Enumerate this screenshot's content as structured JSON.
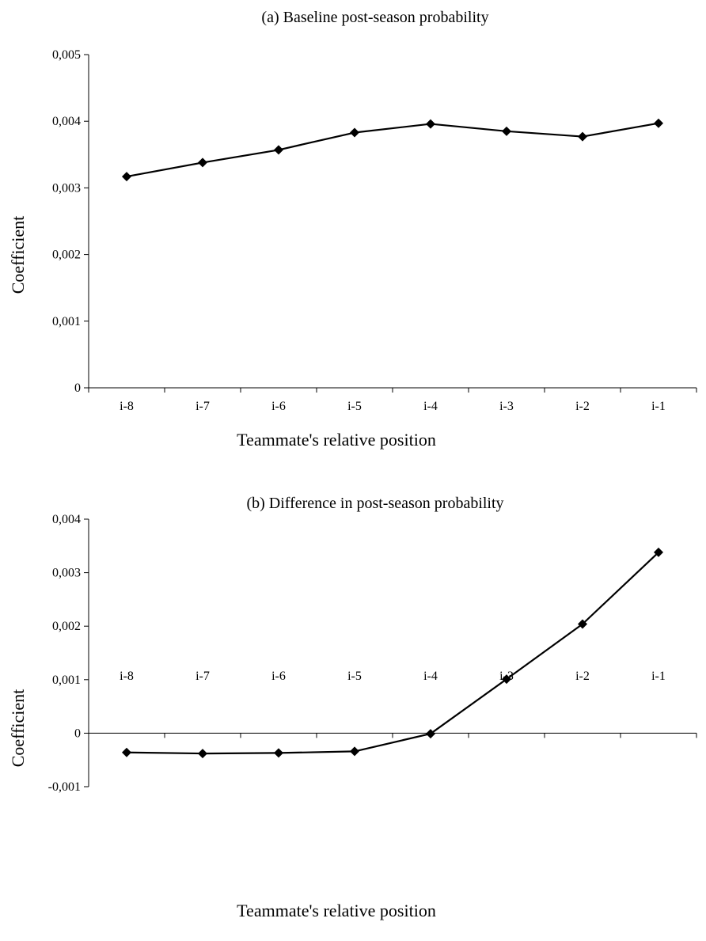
{
  "chart_data": [
    {
      "type": "line",
      "title": "(a) Baseline post-season probability",
      "xlabel": "Teammate's relative position",
      "ylabel": "Coefficient",
      "categories": [
        "i-8",
        "i-7",
        "i-6",
        "i-5",
        "i-4",
        "i-3",
        "i-2",
        "i-1"
      ],
      "values": [
        0.00317,
        0.00338,
        0.00357,
        0.00383,
        0.00396,
        0.00385,
        0.00377,
        0.00397
      ],
      "ylim": [
        0,
        0.005
      ],
      "yticks": [
        0,
        0.001,
        0.002,
        0.003,
        0.004,
        0.005
      ],
      "ytick_labels": [
        "0",
        "0,001",
        "0,002",
        "0,003",
        "0,004",
        "0,005"
      ],
      "grid": false,
      "marker": "diamond",
      "line_color": "#000000"
    },
    {
      "type": "line",
      "title": "(b) Difference in post-season probability",
      "xlabel": "Teammate's relative position",
      "ylabel": "Coefficient",
      "categories": [
        "i-8",
        "i-7",
        "i-6",
        "i-5",
        "i-4",
        "i-3",
        "i-2",
        "i-1"
      ],
      "values": [
        -0.00036,
        -0.00038,
        -0.00037,
        -0.00034,
        -1e-05,
        0.00101,
        0.00204,
        0.00338
      ],
      "ylim": [
        -0.001,
        0.004
      ],
      "yticks": [
        -0.001,
        0,
        0.001,
        0.002,
        0.003,
        0.004
      ],
      "ytick_labels": [
        "-0,001",
        "0",
        "0,001",
        "0,002",
        "0,003",
        "0,004"
      ],
      "grid": false,
      "marker": "diamond",
      "line_color": "#000000"
    }
  ]
}
